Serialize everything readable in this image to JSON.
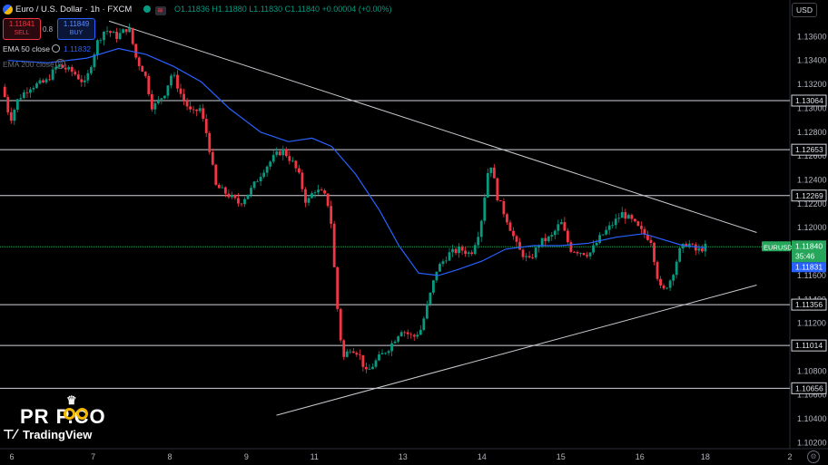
{
  "header": {
    "symbol_title": "Euro / U.S. Dollar · 1h · FXCM",
    "ohlc": "O1.11836 H1.11880 L1.11830 C1.11840 +0.00004 (+0.00%)",
    "sell_price": "1.11841",
    "sell_label": "SELL",
    "spread": "0.8",
    "buy_price": "1.11849",
    "buy_label": "BUY",
    "ema50_label": "EMA 50 close",
    "ema50_value": "1.11832",
    "ema200_label": "EMA 200 close"
  },
  "currency": "USD",
  "watermark": {
    "brand": "PR  P.CO",
    "tradingview": "TradingView"
  },
  "colors": {
    "up": "#089981",
    "down": "#f23645",
    "ema": "#2962ff",
    "hline": "#d1d4dc",
    "price_tag": "#26a65b",
    "bg": "#000000"
  },
  "chart_data": {
    "type": "candlestick",
    "symbol": "EURUSD",
    "timeframe": "1h",
    "x_ticks": [
      "6",
      "7",
      "8",
      "9",
      "11",
      "13",
      "14",
      "15",
      "16",
      "18",
      "2"
    ],
    "y_ticks": [
      "1.13600",
      "1.13400",
      "1.13200",
      "1.13000",
      "1.12800",
      "1.12600",
      "1.12400",
      "1.12200",
      "1.12000",
      "1.11800",
      "1.11600",
      "1.11400",
      "1.11200",
      "1.11000",
      "1.10800",
      "1.10600",
      "1.10400",
      "1.10200"
    ],
    "ylim": [
      1.1015,
      1.138
    ],
    "horizontal_levels": [
      1.13064,
      1.12653,
      1.12269,
      1.11356,
      1.11014,
      1.10656
    ],
    "current_price": {
      "symbol": "EURUSD",
      "price": "1.11840",
      "countdown": "35:46",
      "ema_value": "1.11831",
      "value": 1.1184
    },
    "trendlines": [
      {
        "name": "descending-resistance",
        "from": [
          0.138,
          1.1373
        ],
        "to": [
          0.958,
          1.1196
        ]
      },
      {
        "name": "ascending-support",
        "from": [
          0.35,
          1.1043
        ],
        "to": [
          0.958,
          1.1152
        ]
      }
    ],
    "price_path": [
      [
        0.005,
        1.1318
      ],
      [
        0.015,
        1.129
      ],
      [
        0.025,
        1.1308
      ],
      [
        0.04,
        1.1318
      ],
      [
        0.06,
        1.1322
      ],
      [
        0.075,
        1.1336
      ],
      [
        0.095,
        1.133
      ],
      [
        0.11,
        1.132
      ],
      [
        0.125,
        1.1355
      ],
      [
        0.135,
        1.1366
      ],
      [
        0.15,
        1.136
      ],
      [
        0.165,
        1.1368
      ],
      [
        0.175,
        1.134
      ],
      [
        0.185,
        1.133
      ],
      [
        0.195,
        1.13
      ],
      [
        0.21,
        1.1312
      ],
      [
        0.22,
        1.133
      ],
      [
        0.232,
        1.131
      ],
      [
        0.245,
        1.1295
      ],
      [
        0.255,
        1.13
      ],
      [
        0.265,
        1.1275
      ],
      [
        0.275,
        1.1235
      ],
      [
        0.29,
        1.1228
      ],
      [
        0.305,
        1.122
      ],
      [
        0.32,
        1.1232
      ],
      [
        0.335,
        1.1248
      ],
      [
        0.35,
        1.126
      ],
      [
        0.36,
        1.1265
      ],
      [
        0.372,
        1.1255
      ],
      [
        0.38,
        1.1245
      ],
      [
        0.39,
        1.122
      ],
      [
        0.4,
        1.1232
      ],
      [
        0.412,
        1.1228
      ],
      [
        0.42,
        1.1215
      ],
      [
        0.428,
        1.114
      ],
      [
        0.436,
        1.109
      ],
      [
        0.446,
        1.11
      ],
      [
        0.456,
        1.1095
      ],
      [
        0.466,
        1.1078
      ],
      [
        0.48,
        1.109
      ],
      [
        0.495,
        1.11
      ],
      [
        0.51,
        1.1115
      ],
      [
        0.525,
        1.1108
      ],
      [
        0.535,
        1.1115
      ],
      [
        0.545,
        1.114
      ],
      [
        0.555,
        1.1165
      ],
      [
        0.57,
        1.1178
      ],
      [
        0.585,
        1.1182
      ],
      [
        0.598,
        1.1178
      ],
      [
        0.61,
        1.12
      ],
      [
        0.622,
        1.1258
      ],
      [
        0.632,
        1.1225
      ],
      [
        0.645,
        1.1205
      ],
      [
        0.658,
        1.1182
      ],
      [
        0.672,
        1.1172
      ],
      [
        0.686,
        1.1188
      ],
      [
        0.7,
        1.1192
      ],
      [
        0.712,
        1.1205
      ],
      [
        0.724,
        1.1182
      ],
      [
        0.736,
        1.118
      ],
      [
        0.748,
        1.1178
      ],
      [
        0.762,
        1.1192
      ],
      [
        0.776,
        1.1202
      ],
      [
        0.79,
        1.1212
      ],
      [
        0.803,
        1.1205
      ],
      [
        0.815,
        1.1196
      ],
      [
        0.826,
        1.119
      ],
      [
        0.834,
        1.116
      ],
      [
        0.84,
        1.1145
      ],
      [
        0.852,
        1.1158
      ],
      [
        0.862,
        1.118
      ],
      [
        0.872,
        1.1188
      ],
      [
        0.884,
        1.118
      ],
      [
        0.895,
        1.1184
      ]
    ],
    "ema50_path": [
      [
        0.01,
        1.134
      ],
      [
        0.06,
        1.1338
      ],
      [
        0.11,
        1.1342
      ],
      [
        0.15,
        1.135
      ],
      [
        0.185,
        1.1345
      ],
      [
        0.22,
        1.1335
      ],
      [
        0.255,
        1.1322
      ],
      [
        0.29,
        1.13
      ],
      [
        0.33,
        1.128
      ],
      [
        0.365,
        1.1272
      ],
      [
        0.395,
        1.1275
      ],
      [
        0.42,
        1.1268
      ],
      [
        0.45,
        1.1245
      ],
      [
        0.48,
        1.1215
      ],
      [
        0.505,
        1.1185
      ],
      [
        0.53,
        1.1162
      ],
      [
        0.555,
        1.116
      ],
      [
        0.58,
        1.1165
      ],
      [
        0.61,
        1.1172
      ],
      [
        0.64,
        1.1182
      ],
      [
        0.675,
        1.1185
      ],
      [
        0.71,
        1.1185
      ],
      [
        0.745,
        1.1187
      ],
      [
        0.78,
        1.1192
      ],
      [
        0.815,
        1.1195
      ],
      [
        0.84,
        1.119
      ],
      [
        0.865,
        1.1185
      ],
      [
        0.893,
        1.11832
      ]
    ]
  }
}
